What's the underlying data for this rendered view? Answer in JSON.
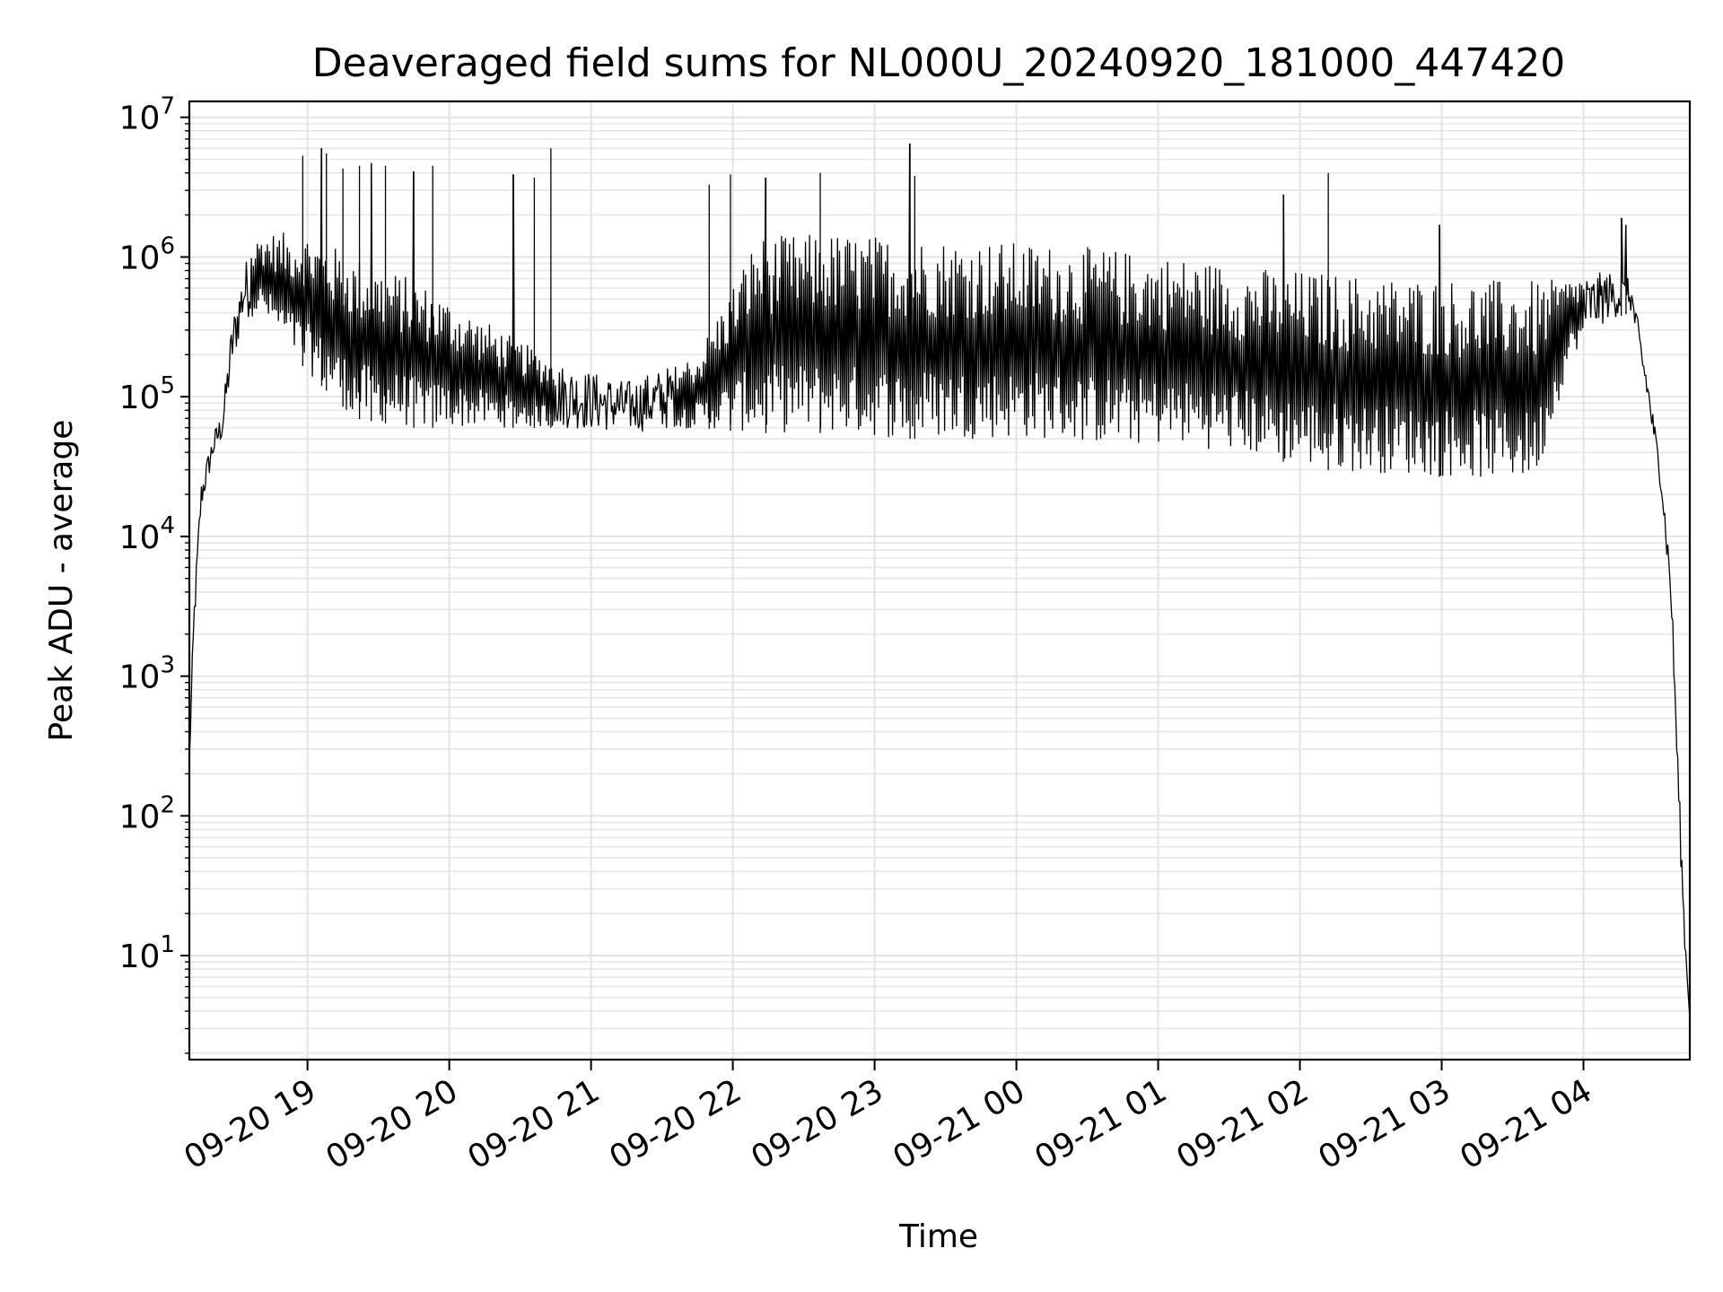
{
  "chart_data": {
    "type": "line",
    "title": "Deaveraged field sums for NL000U_20240920_181000_447420",
    "xlabel": "Time",
    "ylabel": "Peak ADU - average",
    "yscale": "log",
    "ylim": [
      1.8,
      13000000
    ],
    "xlim": [
      "2024-09-20 18:10",
      "2024-09-21 04:45"
    ],
    "grid": true,
    "x_ticks": [
      {
        "t": "2024-09-20 19:00",
        "label": "09-20 19"
      },
      {
        "t": "2024-09-20 20:00",
        "label": "09-20 20"
      },
      {
        "t": "2024-09-20 21:00",
        "label": "09-20 21"
      },
      {
        "t": "2024-09-20 22:00",
        "label": "09-20 22"
      },
      {
        "t": "2024-09-20 23:00",
        "label": "09-20 23"
      },
      {
        "t": "2024-09-21 00:00",
        "label": "09-21 00"
      },
      {
        "t": "2024-09-21 01:00",
        "label": "09-21 01"
      },
      {
        "t": "2024-09-21 02:00",
        "label": "09-21 02"
      },
      {
        "t": "2024-09-21 03:00",
        "label": "09-21 03"
      },
      {
        "t": "2024-09-21 04:00",
        "label": "09-21 04"
      }
    ],
    "y_ticks": [
      {
        "value": 10,
        "base": "10",
        "exp": "1"
      },
      {
        "value": 100,
        "base": "10",
        "exp": "2"
      },
      {
        "value": 1000,
        "base": "10",
        "exp": "3"
      },
      {
        "value": 10000,
        "base": "10",
        "exp": "4"
      },
      {
        "value": 100000,
        "base": "10",
        "exp": "5"
      },
      {
        "value": 1000000,
        "base": "10",
        "exp": "6"
      },
      {
        "value": 10000000,
        "base": "10",
        "exp": "7"
      }
    ],
    "series": [
      {
        "color": "#000000",
        "envelope": [
          {
            "t": "2024-09-20 18:10",
            "low": 200,
            "high": 300
          },
          {
            "t": "2024-09-20 18:12",
            "low": 2000,
            "high": 3500
          },
          {
            "t": "2024-09-20 18:15",
            "low": 15000,
            "high": 25000
          },
          {
            "t": "2024-09-20 18:20",
            "low": 35000,
            "high": 55000
          },
          {
            "t": "2024-09-20 18:24",
            "low": 50000,
            "high": 80000
          },
          {
            "t": "2024-09-20 18:28",
            "low": 150000,
            "high": 350000
          },
          {
            "t": "2024-09-20 18:33",
            "low": 350000,
            "high": 900000
          },
          {
            "t": "2024-09-20 18:40",
            "low": 400000,
            "high": 1500000
          },
          {
            "t": "2024-09-20 19:00",
            "low": 150000,
            "high": 1500000
          },
          {
            "t": "2024-09-20 19:20",
            "low": 70000,
            "high": 1000000
          },
          {
            "t": "2024-09-20 19:45",
            "low": 60000,
            "high": 700000
          },
          {
            "t": "2024-09-20 20:15",
            "low": 60000,
            "high": 350000
          },
          {
            "t": "2024-09-20 20:45",
            "low": 60000,
            "high": 180000
          },
          {
            "t": "2024-09-20 21:15",
            "low": 55000,
            "high": 130000
          },
          {
            "t": "2024-09-20 21:45",
            "low": 60000,
            "high": 200000
          },
          {
            "t": "2024-09-20 22:10",
            "low": 55000,
            "high": 1400000
          },
          {
            "t": "2024-09-20 22:40",
            "low": 55000,
            "high": 1500000
          },
          {
            "t": "2024-09-20 23:10",
            "low": 50000,
            "high": 1400000
          },
          {
            "t": "2024-09-20 23:40",
            "low": 50000,
            "high": 1350000
          },
          {
            "t": "2024-09-21 00:10",
            "low": 50000,
            "high": 1250000
          },
          {
            "t": "2024-09-21 00:40",
            "low": 45000,
            "high": 1150000
          },
          {
            "t": "2024-09-21 01:10",
            "low": 45000,
            "high": 1000000
          },
          {
            "t": "2024-09-21 01:40",
            "low": 38000,
            "high": 850000
          },
          {
            "t": "2024-09-21 02:10",
            "low": 30000,
            "high": 780000
          },
          {
            "t": "2024-09-21 02:40",
            "low": 28000,
            "high": 720000
          },
          {
            "t": "2024-09-21 03:10",
            "low": 26000,
            "high": 700000
          },
          {
            "t": "2024-09-21 03:40",
            "low": 25000,
            "high": 680000
          },
          {
            "t": "2024-09-21 03:55",
            "low": 200000,
            "high": 700000
          },
          {
            "t": "2024-09-21 04:10",
            "low": 350000,
            "high": 800000
          },
          {
            "t": "2024-09-21 04:20",
            "low": 400000,
            "high": 700000
          },
          {
            "t": "2024-09-21 04:27",
            "low": 90000,
            "high": 150000
          },
          {
            "t": "2024-09-21 04:33",
            "low": 20000,
            "high": 30000
          },
          {
            "t": "2024-09-21 04:37",
            "low": 3000,
            "high": 6000
          },
          {
            "t": "2024-09-21 04:41",
            "low": 50,
            "high": 100
          },
          {
            "t": "2024-09-21 04:43",
            "low": 10,
            "high": 15
          },
          {
            "t": "2024-09-21 04:45",
            "low": 3.5,
            "high": 4
          }
        ],
        "spikes": [
          {
            "t": "2024-09-20 18:58",
            "value": 5300000
          },
          {
            "t": "2024-09-20 19:06",
            "value": 6000000
          },
          {
            "t": "2024-09-20 19:08",
            "value": 5500000
          },
          {
            "t": "2024-09-20 19:15",
            "value": 4300000
          },
          {
            "t": "2024-09-20 19:22",
            "value": 4500000
          },
          {
            "t": "2024-09-20 19:27",
            "value": 4700000
          },
          {
            "t": "2024-09-20 19:33",
            "value": 4500000
          },
          {
            "t": "2024-09-20 19:45",
            "value": 4100000
          },
          {
            "t": "2024-09-20 19:53",
            "value": 4500000
          },
          {
            "t": "2024-09-20 20:27",
            "value": 3900000
          },
          {
            "t": "2024-09-20 20:36",
            "value": 3700000
          },
          {
            "t": "2024-09-20 20:43",
            "value": 6000000
          },
          {
            "t": "2024-09-20 21:50",
            "value": 3300000
          },
          {
            "t": "2024-09-20 21:59",
            "value": 3900000
          },
          {
            "t": "2024-09-20 22:14",
            "value": 3700000
          },
          {
            "t": "2024-09-20 22:37",
            "value": 4000000
          },
          {
            "t": "2024-09-20 23:15",
            "value": 6500000
          },
          {
            "t": "2024-09-20 23:17",
            "value": 3800000
          },
          {
            "t": "2024-09-21 01:53",
            "value": 2800000
          },
          {
            "t": "2024-09-21 02:12",
            "value": 4000000
          },
          {
            "t": "2024-09-21 02:59",
            "value": 1700000
          },
          {
            "t": "2024-09-21 04:16",
            "value": 1900000
          },
          {
            "t": "2024-09-21 04:18",
            "value": 1700000
          }
        ]
      }
    ]
  }
}
